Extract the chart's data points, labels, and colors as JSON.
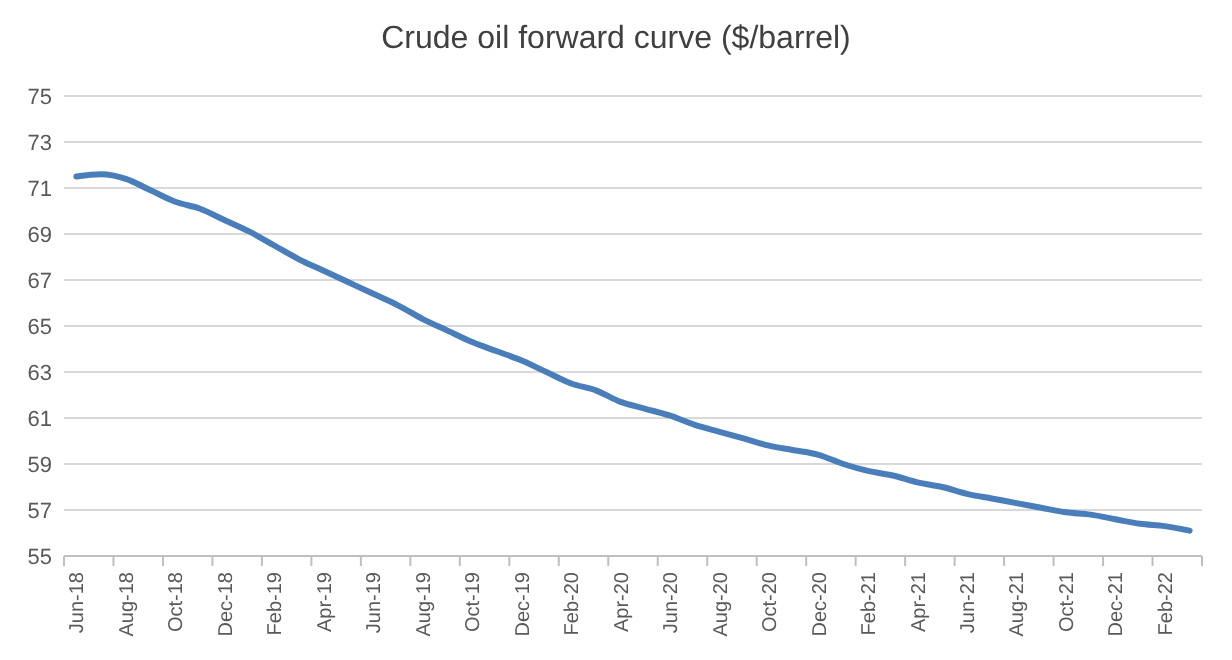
{
  "chart_data": {
    "type": "line",
    "title": "Crude oil forward curve ($/barrel)",
    "categories": [
      "Jun-18",
      null,
      "Aug-18",
      null,
      "Oct-18",
      null,
      "Dec-18",
      null,
      "Feb-19",
      null,
      "Apr-19",
      null,
      "Jun-19",
      null,
      "Aug-19",
      null,
      "Oct-19",
      null,
      "Dec-19",
      null,
      "Feb-20",
      null,
      "Apr-20",
      null,
      "Jun-20",
      null,
      "Aug-20",
      null,
      "Oct-20",
      null,
      "Dec-20",
      null,
      "Feb-21",
      null,
      "Apr-21",
      null,
      "Jun-21",
      null,
      "Aug-21",
      null,
      "Oct-21",
      null,
      "Dec-21",
      null,
      "Feb-22",
      null
    ],
    "series": [
      {
        "color": "#4a7ebb",
        "values": [
          71.5,
          71.6,
          71.4,
          70.9,
          70.4,
          70.1,
          69.6,
          69.1,
          68.5,
          67.9,
          67.4,
          66.9,
          66.4,
          65.9,
          65.3,
          64.8,
          64.3,
          63.9,
          63.5,
          63.0,
          62.5,
          62.2,
          61.7,
          61.4,
          61.1,
          60.7,
          60.4,
          60.1,
          59.8,
          59.6,
          59.4,
          59.0,
          58.7,
          58.5,
          58.2,
          58.0,
          57.7,
          57.5,
          57.3,
          57.1,
          56.9,
          56.8,
          56.6,
          56.4,
          56.3,
          56.1
        ]
      }
    ],
    "ylim": [
      55,
      75
    ],
    "yticks": [
      55,
      57,
      59,
      61,
      63,
      65,
      67,
      69,
      71,
      73,
      75
    ],
    "grid": "y",
    "marker": "none",
    "line_style": "solid"
  }
}
